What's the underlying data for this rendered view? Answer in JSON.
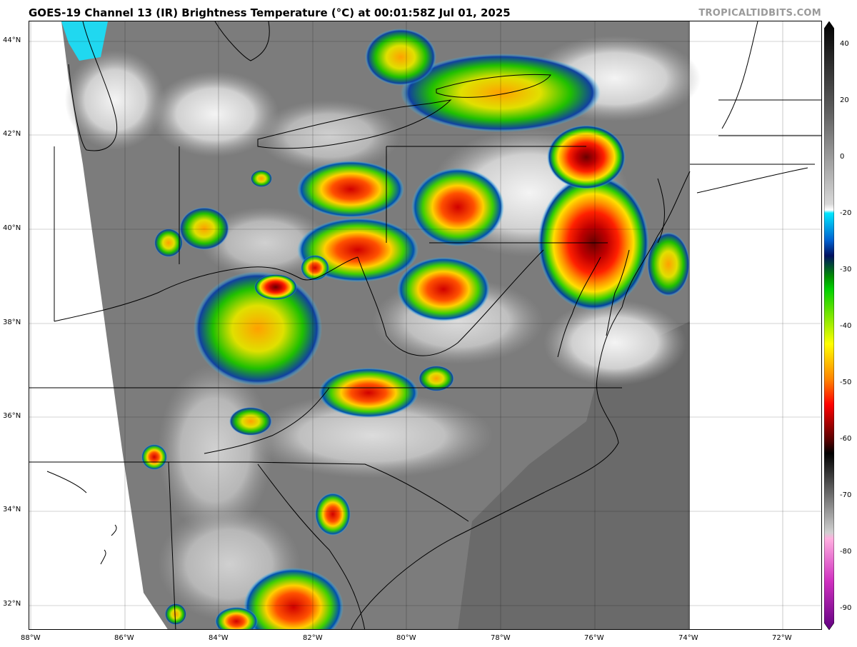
{
  "header": {
    "title": "GOES-19 Channel 13 (IR) Brightness Temperature (°C) at 00:01:58Z Jul 01, 2025",
    "credit": "TROPICALTIDBITS.COM"
  },
  "map": {
    "projection": "lat-lon",
    "lon_range": [
      -88,
      -71.2
    ],
    "lat_range": [
      31.5,
      44.4
    ],
    "lon_ticks": [
      "88°W",
      "86°W",
      "84°W",
      "82°W",
      "80°W",
      "78°W",
      "76°W",
      "74°W",
      "72°W"
    ],
    "lat_ticks": [
      "44°N",
      "42°N",
      "40°N",
      "38°N",
      "36°N",
      "34°N",
      "32°N"
    ],
    "features": [
      "coastlines",
      "state-borders",
      "graticule",
      "ir-cloud-field"
    ],
    "storm_clusters": [
      "eastern-pennsylvania-maryland-convective-complex",
      "western-new-york-storms",
      "ohio-west-virginia-storms",
      "kentucky-storms",
      "southern-virginia-storms",
      "georgia-carolina-storms"
    ]
  },
  "colorbar": {
    "unit": "°C",
    "range": [
      -90,
      40
    ],
    "ticks": [
      "40",
      "20",
      "0",
      "-20",
      "-30",
      "-40",
      "-50",
      "-60",
      "-70",
      "-80",
      "-90"
    ],
    "colors": {
      "warm_dark": "#0a0a0a",
      "gray_mid": "#808080",
      "white": "#ffffff",
      "cyan": "#00e8ff",
      "blue": "#0050c8",
      "navy": "#001060",
      "green": "#00c800",
      "yellow": "#ffff00",
      "orange": "#ff8000",
      "red": "#e00000",
      "dark_red": "#600000",
      "black": "#000000",
      "pink": "#ff80c0",
      "magenta": "#c000c0",
      "purple": "#700090"
    }
  }
}
